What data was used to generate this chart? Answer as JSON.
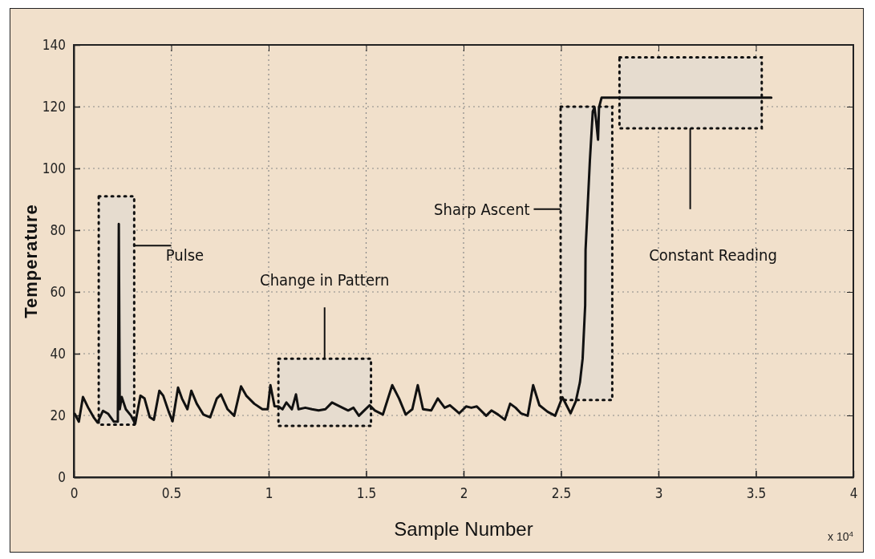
{
  "chart_data": {
    "type": "line",
    "xlabel": "Sample Number",
    "ylabel": "Temperature",
    "xlim": [
      0,
      4
    ],
    "xticks": [
      0,
      0.5,
      1,
      1.5,
      2,
      2.5,
      3,
      3.5,
      4
    ],
    "ylim": [
      0,
      140
    ],
    "yticks": [
      0,
      20,
      40,
      60,
      80,
      100,
      120,
      140
    ],
    "grid": true,
    "annotations": [
      "Pulse",
      "Change in Pattern",
      "Sharp Ascent",
      "Constant Reading",
      "x 10$^{4}$"
    ],
    "series": [
      {
        "color": "#111111",
        "x": [
          0.005,
          0.026,
          0.047,
          0.074,
          0.102,
          0.122,
          0.15,
          0.177,
          0.205,
          0.226,
          0.231,
          0.236,
          0.246,
          0.267,
          0.294,
          0.315,
          0.342,
          0.363,
          0.39,
          0.411,
          0.439,
          0.459,
          0.487,
          0.507,
          0.535,
          0.555,
          0.583,
          0.603,
          0.631,
          0.665,
          0.7,
          0.734,
          0.755,
          0.789,
          0.823,
          0.858,
          0.885,
          0.926,
          0.968,
          0.995,
          1.009,
          1.03,
          1.05,
          1.071,
          1.091,
          1.119,
          1.14,
          1.153,
          1.188,
          1.222,
          1.256,
          1.291,
          1.325,
          1.366,
          1.408,
          1.435,
          1.463,
          1.49,
          1.518,
          1.545,
          1.586,
          1.634,
          1.669,
          1.703,
          1.737,
          1.765,
          1.792,
          1.834,
          1.868,
          1.903,
          1.93,
          1.978,
          2.013,
          2.04,
          2.068,
          2.116,
          2.143,
          2.177,
          2.212,
          2.239,
          2.267,
          2.294,
          2.329,
          2.357,
          2.389,
          2.431,
          2.47,
          2.507,
          2.549,
          2.576,
          2.597,
          2.611,
          2.624,
          2.626,
          2.648,
          2.663,
          2.672,
          2.681,
          2.69,
          2.695,
          2.708,
          3.579
        ],
        "values": [
          20.5,
          18,
          26,
          22.5,
          19.4,
          17.7,
          21.5,
          20.5,
          18,
          18,
          82,
          22,
          26,
          22,
          19.9,
          17.3,
          26.4,
          25.5,
          19.4,
          18.6,
          28,
          26.4,
          21.2,
          18.1,
          29,
          25.5,
          22,
          28,
          23.8,
          20.3,
          19.4,
          25.5,
          26.8,
          22,
          19.9,
          29.4,
          26.4,
          23.8,
          22,
          22,
          29.8,
          23,
          22.9,
          22,
          24.2,
          22,
          26.8,
          22,
          22.5,
          22,
          21.6,
          22,
          24.2,
          22.9,
          21.6,
          22.5,
          19.9,
          21.6,
          23.3,
          21.6,
          20.3,
          29.8,
          25.5,
          20.3,
          22,
          29.8,
          22,
          21.6,
          25.5,
          22.5,
          23.3,
          20.7,
          22.9,
          22.5,
          22.9,
          19.9,
          21.6,
          20.3,
          18.6,
          23.8,
          22.5,
          20.7,
          19.9,
          29.8,
          23.3,
          21.2,
          19.9,
          25.9,
          20.7,
          24.6,
          30.7,
          38.4,
          55.7,
          73.6,
          102.4,
          118.5,
          119.7,
          115,
          109.3,
          119.7,
          122.9,
          122.9
        ]
      }
    ]
  }
}
